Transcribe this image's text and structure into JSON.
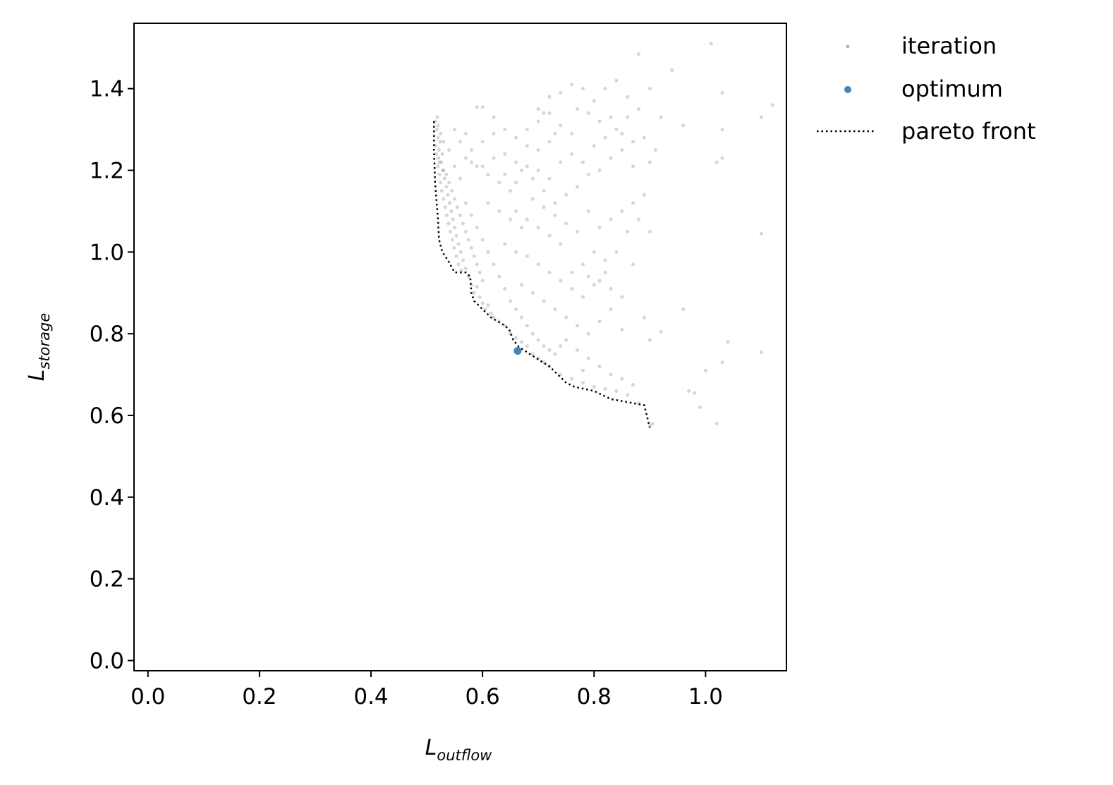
{
  "chart_data": {
    "type": "scatter",
    "xlabel": {
      "base": "L",
      "sub": "outflow"
    },
    "ylabel": {
      "base": "L",
      "sub": "storage"
    },
    "xlim": [
      -0.025,
      1.145
    ],
    "ylim": [
      -0.025,
      1.56
    ],
    "xticks": [
      "0.0",
      "0.2",
      "0.4",
      "0.6",
      "0.8",
      "1.0"
    ],
    "yticks": [
      "0.0",
      "0.2",
      "0.4",
      "0.6",
      "0.8",
      "1.0",
      "1.2",
      "1.4"
    ],
    "grid": false,
    "legend": {
      "position": "outside-top-right",
      "entries": [
        {
          "label": "iteration",
          "marker": "dot",
          "color": "#b3b3b3"
        },
        {
          "label": "optimum",
          "marker": "dot",
          "color": "#4682b4"
        },
        {
          "label": "pareto front",
          "marker": "dotted-line",
          "color": "#000000"
        }
      ]
    },
    "colors": {
      "iteration": "#8c8c8c",
      "optimum": "#4682b4",
      "pareto": "#000000"
    },
    "series": [
      {
        "name": "iteration",
        "points": [
          [
            0.515,
            1.32
          ],
          [
            0.518,
            1.3
          ],
          [
            0.52,
            1.28
          ],
          [
            0.516,
            1.26
          ],
          [
            0.522,
            1.25
          ],
          [
            0.519,
            1.33
          ],
          [
            0.524,
            1.27
          ],
          [
            0.521,
            1.23
          ],
          [
            0.526,
            1.22
          ],
          [
            0.52,
            1.21
          ],
          [
            0.528,
            1.24
          ],
          [
            0.523,
            1.19
          ],
          [
            0.53,
            1.2
          ],
          [
            0.525,
            1.17
          ],
          [
            0.532,
            1.18
          ],
          [
            0.527,
            1.15
          ],
          [
            0.535,
            1.16
          ],
          [
            0.53,
            1.13
          ],
          [
            0.538,
            1.14
          ],
          [
            0.533,
            1.11
          ],
          [
            0.541,
            1.12
          ],
          [
            0.536,
            1.09
          ],
          [
            0.544,
            1.1
          ],
          [
            0.539,
            1.07
          ],
          [
            0.547,
            1.08
          ],
          [
            0.542,
            1.05
          ],
          [
            0.55,
            1.06
          ],
          [
            0.546,
            1.03
          ],
          [
            0.553,
            1.04
          ],
          [
            0.549,
            1.01
          ],
          [
            0.557,
            1.02
          ],
          [
            0.553,
            0.99
          ],
          [
            0.561,
            1.0
          ],
          [
            0.557,
            0.97
          ],
          [
            0.565,
            0.98
          ],
          [
            0.562,
            0.955
          ],
          [
            0.57,
            0.96
          ],
          [
            0.575,
            0.94
          ],
          [
            0.58,
            0.92
          ],
          [
            0.585,
            0.9
          ],
          [
            0.59,
            0.915
          ],
          [
            0.595,
            0.89
          ],
          [
            0.6,
            0.875
          ],
          [
            0.605,
            0.86
          ],
          [
            0.61,
            0.87
          ],
          [
            0.615,
            0.85
          ],
          [
            0.62,
            0.84
          ],
          [
            0.63,
            0.83
          ],
          [
            0.64,
            0.82
          ],
          [
            0.65,
            0.8
          ],
          [
            0.66,
            0.79
          ],
          [
            0.67,
            0.78
          ],
          [
            0.68,
            0.77
          ],
          [
            0.69,
            0.75
          ],
          [
            0.7,
            0.74
          ],
          [
            0.71,
            0.73
          ],
          [
            0.72,
            0.72
          ],
          [
            0.74,
            0.7
          ],
          [
            0.76,
            0.69
          ],
          [
            0.78,
            0.68
          ],
          [
            0.8,
            0.67
          ],
          [
            0.82,
            0.665
          ],
          [
            0.84,
            0.66
          ],
          [
            0.86,
            0.65
          ],
          [
            0.88,
            0.63
          ],
          [
            0.9,
            0.575
          ],
          [
            0.905,
            0.58
          ],
          [
            0.52,
            1.31
          ],
          [
            0.525,
            1.29
          ],
          [
            0.53,
            1.27
          ],
          [
            0.517,
            1.24
          ],
          [
            0.523,
            1.22
          ],
          [
            0.529,
            1.2
          ],
          [
            0.535,
            1.19
          ],
          [
            0.54,
            1.17
          ],
          [
            0.545,
            1.15
          ],
          [
            0.55,
            1.13
          ],
          [
            0.555,
            1.11
          ],
          [
            0.56,
            1.09
          ],
          [
            0.565,
            1.07
          ],
          [
            0.57,
            1.05
          ],
          [
            0.575,
            1.03
          ],
          [
            0.58,
            1.01
          ],
          [
            0.585,
            0.99
          ],
          [
            0.59,
            0.97
          ],
          [
            0.595,
            0.95
          ],
          [
            0.6,
            0.93
          ],
          [
            0.54,
            1.25
          ],
          [
            0.55,
            1.21
          ],
          [
            0.56,
            1.18
          ],
          [
            0.57,
            1.12
          ],
          [
            0.58,
            1.09
          ],
          [
            0.59,
            1.06
          ],
          [
            0.6,
            1.03
          ],
          [
            0.61,
            1.0
          ],
          [
            0.62,
            0.97
          ],
          [
            0.63,
            0.94
          ],
          [
            0.64,
            0.91
          ],
          [
            0.65,
            0.88
          ],
          [
            0.66,
            0.86
          ],
          [
            0.67,
            0.84
          ],
          [
            0.68,
            0.82
          ],
          [
            0.69,
            0.8
          ],
          [
            0.7,
            0.785
          ],
          [
            0.71,
            0.77
          ],
          [
            0.72,
            0.76
          ],
          [
            0.73,
            0.75
          ],
          [
            0.55,
            1.3
          ],
          [
            0.57,
            1.29
          ],
          [
            0.59,
            1.355
          ],
          [
            0.6,
            1.355
          ],
          [
            0.62,
            1.33
          ],
          [
            0.64,
            1.3
          ],
          [
            0.66,
            1.28
          ],
          [
            0.68,
            1.26
          ],
          [
            0.7,
            1.25
          ],
          [
            0.72,
            1.27
          ],
          [
            0.58,
            1.22
          ],
          [
            0.6,
            1.21
          ],
          [
            0.62,
            1.23
          ],
          [
            0.64,
            1.19
          ],
          [
            0.66,
            1.17
          ],
          [
            0.68,
            1.21
          ],
          [
            0.7,
            1.2
          ],
          [
            0.72,
            1.18
          ],
          [
            0.74,
            1.22
          ],
          [
            0.76,
            1.24
          ],
          [
            0.61,
            1.12
          ],
          [
            0.63,
            1.1
          ],
          [
            0.65,
            1.08
          ],
          [
            0.67,
            1.06
          ],
          [
            0.69,
            1.13
          ],
          [
            0.71,
            1.11
          ],
          [
            0.73,
            1.09
          ],
          [
            0.75,
            1.07
          ],
          [
            0.77,
            1.05
          ],
          [
            0.79,
            1.1
          ],
          [
            0.64,
            1.02
          ],
          [
            0.66,
            1.0
          ],
          [
            0.68,
            0.99
          ],
          [
            0.7,
            0.97
          ],
          [
            0.72,
            0.95
          ],
          [
            0.74,
            0.93
          ],
          [
            0.76,
            0.91
          ],
          [
            0.78,
            0.89
          ],
          [
            0.8,
            0.92
          ],
          [
            0.82,
            0.95
          ],
          [
            0.67,
            0.92
          ],
          [
            0.69,
            0.9
          ],
          [
            0.71,
            0.88
          ],
          [
            0.73,
            0.86
          ],
          [
            0.75,
            0.84
          ],
          [
            0.77,
            0.82
          ],
          [
            0.79,
            0.8
          ],
          [
            0.81,
            0.83
          ],
          [
            0.83,
            0.86
          ],
          [
            0.85,
            0.81
          ],
          [
            0.7,
            1.35
          ],
          [
            0.71,
            1.34
          ],
          [
            0.72,
            1.38
          ],
          [
            0.74,
            1.39
          ],
          [
            0.76,
            1.41
          ],
          [
            0.78,
            1.4
          ],
          [
            0.8,
            1.37
          ],
          [
            0.82,
            1.4
          ],
          [
            0.84,
            1.42
          ],
          [
            0.86,
            1.38
          ],
          [
            0.88,
            1.485
          ],
          [
            0.9,
            1.4
          ],
          [
            0.92,
            1.33
          ],
          [
            0.94,
            1.445
          ],
          [
            0.96,
            1.31
          ],
          [
            1.01,
            1.51
          ],
          [
            1.03,
            1.39
          ],
          [
            1.03,
            1.3
          ],
          [
            1.02,
            1.22
          ],
          [
            1.03,
            1.23
          ],
          [
            1.1,
            1.33
          ],
          [
            1.12,
            1.36
          ],
          [
            0.88,
            1.35
          ],
          [
            0.86,
            1.33
          ],
          [
            0.84,
            1.3
          ],
          [
            0.82,
            1.28
          ],
          [
            0.8,
            1.26
          ],
          [
            0.78,
            1.22
          ],
          [
            0.76,
            1.29
          ],
          [
            0.74,
            1.31
          ],
          [
            0.77,
            1.35
          ],
          [
            0.79,
            1.34
          ],
          [
            0.81,
            1.32
          ],
          [
            0.83,
            1.33
          ],
          [
            0.85,
            1.29
          ],
          [
            0.87,
            1.27
          ],
          [
            0.89,
            1.28
          ],
          [
            0.91,
            1.25
          ],
          [
            0.9,
            1.22
          ],
          [
            0.87,
            1.21
          ],
          [
            0.85,
            1.25
          ],
          [
            0.83,
            1.23
          ],
          [
            0.81,
            1.2
          ],
          [
            0.79,
            1.19
          ],
          [
            0.77,
            1.16
          ],
          [
            0.75,
            1.14
          ],
          [
            0.73,
            1.12
          ],
          [
            0.71,
            1.15
          ],
          [
            0.69,
            1.18
          ],
          [
            0.67,
            1.2
          ],
          [
            0.89,
            1.14
          ],
          [
            0.87,
            1.12
          ],
          [
            0.85,
            1.1
          ],
          [
            0.83,
            1.08
          ],
          [
            0.81,
            1.06
          ],
          [
            0.86,
            1.05
          ],
          [
            0.88,
            1.08
          ],
          [
            0.9,
            1.05
          ],
          [
            0.84,
            1.0
          ],
          [
            0.82,
            0.98
          ],
          [
            0.8,
            1.0
          ],
          [
            0.78,
            0.97
          ],
          [
            0.76,
            0.95
          ],
          [
            0.79,
            0.94
          ],
          [
            0.81,
            0.93
          ],
          [
            0.83,
            0.91
          ],
          [
            0.85,
            0.89
          ],
          [
            0.87,
            0.97
          ],
          [
            0.89,
            0.84
          ],
          [
            0.9,
            0.785
          ],
          [
            0.92,
            0.805
          ],
          [
            0.96,
            0.86
          ],
          [
            0.97,
            0.66
          ],
          [
            0.98,
            0.655
          ],
          [
            0.99,
            0.62
          ],
          [
            1.0,
            0.71
          ],
          [
            1.02,
            0.58
          ],
          [
            1.03,
            0.73
          ],
          [
            1.04,
            0.78
          ],
          [
            1.1,
            0.755
          ],
          [
            1.1,
            1.045
          ],
          [
            0.75,
            0.785
          ],
          [
            0.77,
            0.76
          ],
          [
            0.79,
            0.74
          ],
          [
            0.81,
            0.72
          ],
          [
            0.83,
            0.7
          ],
          [
            0.85,
            0.69
          ],
          [
            0.87,
            0.675
          ],
          [
            0.74,
            0.77
          ],
          [
            0.78,
            0.71
          ],
          [
            0.66,
            1.1
          ],
          [
            0.68,
            1.08
          ],
          [
            0.7,
            1.06
          ],
          [
            0.72,
            1.04
          ],
          [
            0.74,
            1.02
          ],
          [
            0.65,
            1.15
          ],
          [
            0.63,
            1.17
          ],
          [
            0.61,
            1.19
          ],
          [
            0.59,
            1.21
          ],
          [
            0.57,
            1.23
          ],
          [
            0.56,
            1.27
          ],
          [
            0.58,
            1.25
          ],
          [
            0.6,
            1.27
          ],
          [
            0.62,
            1.29
          ],
          [
            0.64,
            1.24
          ],
          [
            0.66,
            1.22
          ],
          [
            0.68,
            1.3
          ],
          [
            0.7,
            1.32
          ],
          [
            0.72,
            1.34
          ],
          [
            0.73,
            1.29
          ]
        ]
      },
      {
        "name": "optimum",
        "points": [
          [
            0.663,
            0.758
          ]
        ]
      },
      {
        "name": "pareto front",
        "points": [
          [
            0.513,
            1.32
          ],
          [
            0.513,
            1.25
          ],
          [
            0.515,
            1.17
          ],
          [
            0.52,
            1.08
          ],
          [
            0.522,
            1.03
          ],
          [
            0.528,
            1.0
          ],
          [
            0.54,
            0.975
          ],
          [
            0.55,
            0.95
          ],
          [
            0.57,
            0.95
          ],
          [
            0.578,
            0.94
          ],
          [
            0.58,
            0.9
          ],
          [
            0.585,
            0.88
          ],
          [
            0.6,
            0.86
          ],
          [
            0.615,
            0.84
          ],
          [
            0.64,
            0.82
          ],
          [
            0.648,
            0.81
          ],
          [
            0.655,
            0.785
          ],
          [
            0.665,
            0.768
          ],
          [
            0.685,
            0.75
          ],
          [
            0.72,
            0.72
          ],
          [
            0.75,
            0.68
          ],
          [
            0.765,
            0.67
          ],
          [
            0.8,
            0.66
          ],
          [
            0.83,
            0.64
          ],
          [
            0.89,
            0.625
          ],
          [
            0.9,
            0.57
          ]
        ]
      }
    ]
  }
}
